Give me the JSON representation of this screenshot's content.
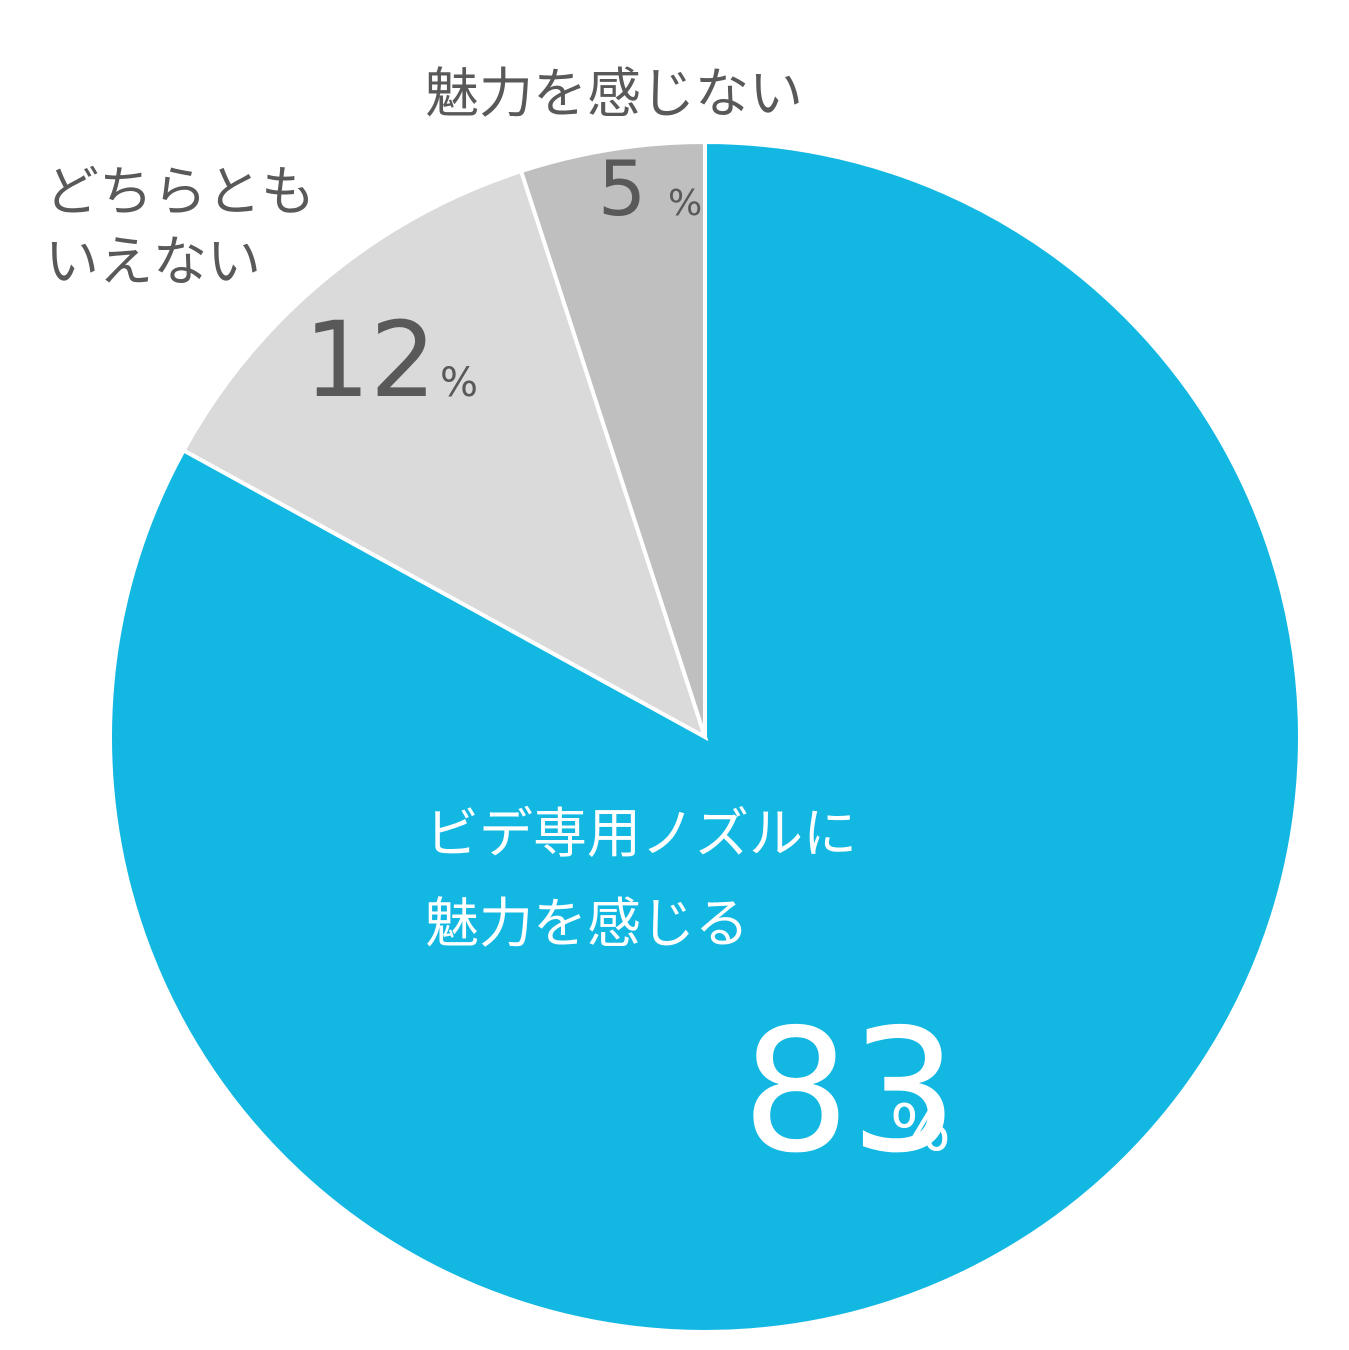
{
  "chart_data": {
    "type": "pie",
    "start_angle_deg": 0,
    "direction": "clockwise",
    "slices": [
      {
        "label_lines": [
          "ビデ専用ノズルに",
          "魅力を感じる"
        ],
        "value": 83,
        "unit": "%",
        "color": "#12B8E2",
        "text_color": "#ffffff"
      },
      {
        "label_lines": [
          "どちらとも",
          "いえない"
        ],
        "value": 12,
        "unit": "%",
        "color": "#DADADA",
        "text_color": "#595959"
      },
      {
        "label_lines": [
          "魅力を感じない"
        ],
        "value": 5,
        "unit": "%",
        "color": "#BFBFBF",
        "text_color": "#595959"
      }
    ]
  }
}
